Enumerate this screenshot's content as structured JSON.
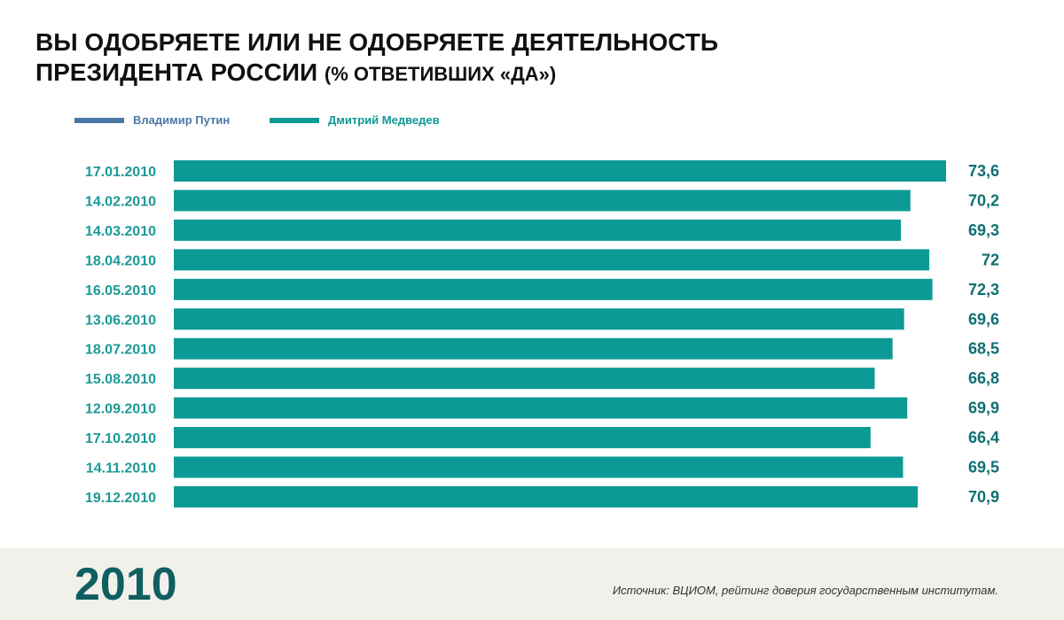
{
  "header": {
    "title_line1": "ВЫ ОДОБРЯЕТЕ ИЛИ НЕ ОДОБРЯЕТЕ ДЕЯТЕЛЬНОСТЬ",
    "title_line2": "ПРЕЗИДЕНТА РОССИИ",
    "title_sub": "(% ОТВЕТИВШИХ «ДА»)"
  },
  "legend": [
    {
      "label": "Владимир Путин",
      "color": "#4a78a6"
    },
    {
      "label": "Дмитрий Медведев",
      "color": "#0c9a97"
    }
  ],
  "footer": {
    "year": "2010",
    "source": "Источник: ВЦИОМ, рейтинг доверия государственным институтам."
  },
  "colors": {
    "bar": "#0c9a97",
    "category_label": "#1c9a97",
    "value_label": "#0f6f70"
  },
  "chart_data": {
    "type": "bar",
    "orientation": "horizontal",
    "title": "ВЫ ОДОБРЯЕТЕ ИЛИ НЕ ОДОБРЯЕТЕ ДЕЯТЕЛЬНОСТЬ ПРЕЗИДЕНТА РОССИИ (% ОТВЕТИВШИХ «ДА»)",
    "categories": [
      "17.01.2010",
      "14.02.2010",
      "14.03.2010",
      "18.04.2010",
      "16.05.2010",
      "13.06.2010",
      "18.07.2010",
      "15.08.2010",
      "12.09.2010",
      "17.10.2010",
      "14.11.2010",
      "19.12.2010"
    ],
    "series": [
      {
        "name": "Дмитрий Медведев",
        "values": [
          73.6,
          70.2,
          69.3,
          72,
          72.3,
          69.6,
          68.5,
          66.8,
          69.9,
          66.4,
          69.5,
          70.9
        ],
        "labels": [
          "73,6",
          "70,2",
          "69,3",
          "72",
          "72,3",
          "69,6",
          "68,5",
          "66,8",
          "69,9",
          "66,4",
          "69,5",
          "70,9"
        ]
      }
    ],
    "xlim": [
      0,
      73.6
    ],
    "grid": false,
    "legend_position": "top-left"
  }
}
